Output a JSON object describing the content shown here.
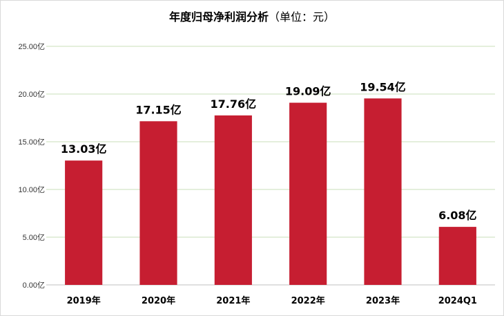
{
  "chart_data": {
    "type": "bar",
    "title": "年度归母净利润分析",
    "subtitle": "（单位：元）",
    "categories": [
      "2019年",
      "2020年",
      "2021年",
      "2022年",
      "2023年",
      "2024Q1"
    ],
    "values": [
      13.03,
      17.15,
      17.76,
      19.09,
      19.54,
      6.08
    ],
    "data_labels": [
      "13.03亿",
      "17.15亿",
      "17.76亿",
      "19.09亿",
      "19.54亿",
      "6.08亿"
    ],
    "y_ticks": [
      "0.00亿",
      "5.00亿",
      "10.00亿",
      "15.00亿",
      "20.00亿",
      "25.00亿"
    ],
    "ylim": [
      0,
      25
    ],
    "grid": true,
    "legend": "none",
    "bar_color": "#c61e31"
  }
}
